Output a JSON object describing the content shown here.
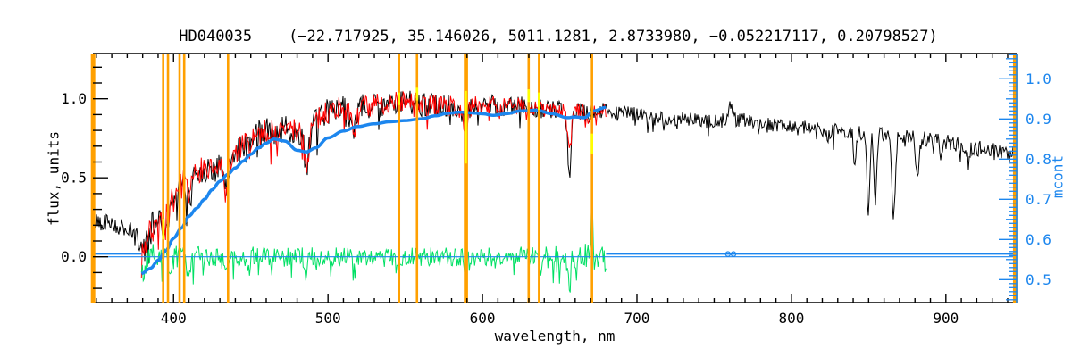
{
  "title": "HD040035    (−22.717925, 35.146026, 5011.1281, 2.8733980, −0.052217117, 0.20798527)",
  "colors": {
    "observed": "#000000",
    "fitted": "#ff0000",
    "residual": "#00e064",
    "continuum": "#1c86ee",
    "marker_lines": "#ffa000",
    "masked_segments": "#ffff00",
    "background": "#ffffff"
  },
  "axes": {
    "x": {
      "label": "wavelength, nm",
      "minor_step": 10,
      "major_ticks": [
        {
          "value": 400,
          "label": "400"
        },
        {
          "value": 500,
          "label": "500"
        },
        {
          "value": 600,
          "label": "600"
        },
        {
          "value": 700,
          "label": "700"
        },
        {
          "value": 800,
          "label": "800"
        },
        {
          "value": 900,
          "label": "900"
        }
      ]
    },
    "y_left": {
      "label": "flux, units",
      "minor_step": 0.1,
      "major_ticks": [
        {
          "value": 0.0,
          "label": "0.0"
        },
        {
          "value": 0.5,
          "label": "0.5"
        },
        {
          "value": 1.0,
          "label": "1.0"
        }
      ]
    },
    "y_right": {
      "label": "mcont",
      "minor_step": 0.01,
      "medium_step": 0.05,
      "major_ticks": [
        {
          "value": 1.0,
          "label": "1.0"
        },
        {
          "value": 0.9,
          "label": "0.9"
        },
        {
          "value": 0.8,
          "label": "0.8"
        },
        {
          "value": 0.7,
          "label": "0.7"
        },
        {
          "value": 0.6,
          "label": "0.6"
        },
        {
          "value": 0.5,
          "label": "0.5"
        }
      ]
    }
  },
  "chart_data": {
    "type": "line",
    "title": "HD040035    (−22.717925, 35.146026, 5011.1281, 2.8733980, −0.052217117, 0.20798527)",
    "xlabel": "wavelength, nm",
    "ylabel_left": "flux, units",
    "ylabel_right": "mcont",
    "xlim": [
      347.8,
      945.8
    ],
    "ylim_flux": [
      -0.29,
      1.286
    ],
    "ylim_mcont": [
      0.443,
      1.063
    ],
    "grid": false,
    "series": [
      {
        "name": "observed_spectrum",
        "color": "#000000",
        "style": "noisy-line",
        "axis": "flux",
        "range": [
          347.8,
          945.8
        ],
        "seed": 42,
        "amp_scale": 1.0,
        "anchors": [
          [
            347.8,
            0.22
          ],
          [
            355,
            0.23
          ],
          [
            362,
            0.21
          ],
          [
            368,
            0.18
          ],
          [
            373,
            0.15
          ],
          [
            377,
            0.1
          ],
          [
            380,
            0.1
          ],
          [
            385,
            0.16
          ],
          [
            390,
            0.28
          ],
          [
            395,
            0.33
          ],
          [
            400,
            0.38
          ],
          [
            405,
            0.45
          ],
          [
            410,
            0.48
          ],
          [
            415,
            0.54
          ],
          [
            420,
            0.58
          ],
          [
            426,
            0.57
          ],
          [
            432,
            0.55
          ],
          [
            438,
            0.62
          ],
          [
            444,
            0.7
          ],
          [
            450,
            0.74
          ],
          [
            456,
            0.78
          ],
          [
            462,
            0.8
          ],
          [
            468,
            0.79
          ],
          [
            474,
            0.81
          ],
          [
            480,
            0.8
          ],
          [
            486,
            0.78
          ],
          [
            492,
            0.85
          ],
          [
            498,
            0.91
          ],
          [
            504,
            0.94
          ],
          [
            510,
            0.95
          ],
          [
            516,
            0.9
          ],
          [
            522,
            0.95
          ],
          [
            528,
            0.97
          ],
          [
            534,
            0.96
          ],
          [
            540,
            0.975
          ],
          [
            546,
            0.985
          ],
          [
            552,
            0.975
          ],
          [
            558,
            0.97
          ],
          [
            564,
            0.96
          ],
          [
            570,
            0.965
          ],
          [
            576,
            0.96
          ],
          [
            582,
            0.95
          ],
          [
            588,
            0.92
          ],
          [
            594,
            0.96
          ],
          [
            600,
            0.965
          ],
          [
            606,
            0.96
          ],
          [
            612,
            0.95
          ],
          [
            618,
            0.95
          ],
          [
            624,
            0.955
          ],
          [
            630,
            0.945
          ],
          [
            636,
            0.94
          ],
          [
            642,
            0.93
          ],
          [
            648,
            0.93
          ],
          [
            654,
            0.92
          ],
          [
            660,
            0.925
          ],
          [
            666,
            0.92
          ],
          [
            672,
            0.92
          ],
          [
            678,
            0.93
          ],
          [
            684,
            0.92
          ],
          [
            690,
            0.915
          ],
          [
            700,
            0.905
          ],
          [
            710,
            0.89
          ],
          [
            720,
            0.875
          ],
          [
            730,
            0.87
          ],
          [
            740,
            0.86
          ],
          [
            750,
            0.855
          ],
          [
            760,
            0.87
          ],
          [
            770,
            0.86
          ],
          [
            780,
            0.845
          ],
          [
            790,
            0.835
          ],
          [
            800,
            0.83
          ],
          [
            810,
            0.82
          ],
          [
            820,
            0.81
          ],
          [
            830,
            0.8
          ],
          [
            840,
            0.785
          ],
          [
            850,
            0.78
          ],
          [
            860,
            0.77
          ],
          [
            870,
            0.76
          ],
          [
            880,
            0.75
          ],
          [
            890,
            0.74
          ],
          [
            900,
            0.725
          ],
          [
            910,
            0.71
          ],
          [
            920,
            0.69
          ],
          [
            930,
            0.67
          ],
          [
            940,
            0.65
          ],
          [
            945.8,
            0.64
          ]
        ],
        "noise_amp": [
          [
            348,
            0.055
          ],
          [
            370,
            0.05
          ],
          [
            380,
            0.075
          ],
          [
            395,
            0.095
          ],
          [
            420,
            0.085
          ],
          [
            460,
            0.08
          ],
          [
            500,
            0.075
          ],
          [
            540,
            0.07
          ],
          [
            580,
            0.065
          ],
          [
            620,
            0.055
          ],
          [
            660,
            0.05
          ],
          [
            680,
            0.045
          ],
          [
            700,
            0.042
          ],
          [
            740,
            0.04
          ],
          [
            780,
            0.038
          ],
          [
            820,
            0.04
          ],
          [
            860,
            0.042
          ],
          [
            900,
            0.045
          ],
          [
            945,
            0.05
          ]
        ],
        "dips": [
          [
            381,
            0.06,
            1.5
          ],
          [
            389,
            0.05,
            1
          ],
          [
            393.3,
            0.13,
            1.0
          ],
          [
            396.8,
            0.15,
            1.1
          ],
          [
            402,
            0.06,
            0.8
          ],
          [
            410.2,
            0.13,
            1.3
          ],
          [
            422,
            0.05,
            1.0
          ],
          [
            434.1,
            0.17,
            1.3
          ],
          [
            449,
            0.05,
            0.8
          ],
          [
            486.1,
            0.22,
            1.3
          ],
          [
            516.8,
            0.1,
            1.8
          ],
          [
            527,
            0.06,
            1.0
          ],
          [
            589.2,
            0.13,
            1.2
          ],
          [
            612,
            0.04,
            0.8
          ],
          [
            629,
            0.04,
            0.8
          ],
          [
            656.3,
            0.42,
            1.1
          ],
          [
            669,
            0.05,
            0.8
          ],
          [
            718,
            0.05,
            1.2
          ],
          [
            823,
            0.05,
            1.2
          ],
          [
            841,
            0.22,
            0.7
          ],
          [
            849.8,
            0.5,
            0.9
          ],
          [
            854.4,
            0.42,
            0.9
          ],
          [
            866.2,
            0.52,
            1.0
          ],
          [
            881.5,
            0.28,
            0.8
          ],
          [
            897,
            0.08,
            0.8
          ],
          [
            915,
            0.06,
            0.8
          ]
        ],
        "bumps": [
          [
            760.8,
            0.11,
            1.2
          ],
          [
            768,
            0.03,
            1.0
          ]
        ]
      },
      {
        "name": "fitted_spectrum",
        "color": "#ff0000",
        "style": "noisy-line",
        "axis": "flux",
        "range": [
          379.2,
          680.2
        ],
        "seed": 7,
        "amp_scale": 0.88,
        "anchors_ref": "observed_spectrum",
        "dips_override": [
          [
            656.3,
            0.28,
            1.1
          ]
        ]
      },
      {
        "name": "residuals",
        "color": "#00e064",
        "style": "noisy-line",
        "axis": "flux",
        "range": [
          379.2,
          680.5
        ],
        "seed": 99,
        "baseline": 0.0,
        "noise_amp": [
          [
            379,
            0.085
          ],
          [
            390,
            0.075
          ],
          [
            420,
            0.06
          ],
          [
            480,
            0.055
          ],
          [
            540,
            0.05
          ],
          [
            600,
            0.055
          ],
          [
            640,
            0.065
          ],
          [
            660,
            0.07
          ],
          [
            680,
            0.09
          ]
        ],
        "spikes": [
          [
            380,
            -0.06,
            1.5
          ],
          [
            397,
            -0.12,
            0.8
          ],
          [
            410,
            -0.1,
            0.8
          ],
          [
            434,
            -0.13,
            0.8
          ],
          [
            486,
            -0.15,
            0.8
          ],
          [
            517,
            -0.1,
            1.0
          ],
          [
            589,
            -0.13,
            0.8
          ],
          [
            637,
            -0.1,
            0.8
          ],
          [
            656.3,
            -0.25,
            0.8
          ],
          [
            661,
            -0.13,
            0.8
          ],
          [
            671,
            0.3,
            0.9
          ],
          [
            672,
            -0.12,
            0.6
          ]
        ]
      },
      {
        "name": "mcont_continuum",
        "color": "#1c86ee",
        "style": "smooth-line",
        "axis": "mcont",
        "width": 3.5,
        "range": [
          379.2,
          680.0
        ],
        "anchors": [
          [
            379.2,
            0.515
          ],
          [
            385,
            0.528
          ],
          [
            390,
            0.548
          ],
          [
            395,
            0.572
          ],
          [
            400,
            0.603
          ],
          [
            405,
            0.628
          ],
          [
            410,
            0.658
          ],
          [
            415,
            0.678
          ],
          [
            420,
            0.7
          ],
          [
            425,
            0.724
          ],
          [
            430,
            0.745
          ],
          [
            435,
            0.762
          ],
          [
            440,
            0.778
          ],
          [
            445,
            0.795
          ],
          [
            450,
            0.812
          ],
          [
            455,
            0.828
          ],
          [
            460,
            0.84
          ],
          [
            465,
            0.85
          ],
          [
            472,
            0.845
          ],
          [
            480,
            0.822
          ],
          [
            486,
            0.818
          ],
          [
            492,
            0.828
          ],
          [
            500,
            0.853
          ],
          [
            510,
            0.87
          ],
          [
            519,
            0.881
          ],
          [
            530,
            0.888
          ],
          [
            540,
            0.893
          ],
          [
            550,
            0.896
          ],
          [
            560,
            0.9
          ],
          [
            570,
            0.908
          ],
          [
            577,
            0.914
          ],
          [
            585,
            0.917
          ],
          [
            594,
            0.915
          ],
          [
            600,
            0.913
          ],
          [
            607,
            0.909
          ],
          [
            615,
            0.913
          ],
          [
            625,
            0.92
          ],
          [
            635,
            0.922
          ],
          [
            645,
            0.913
          ],
          [
            655,
            0.903
          ],
          [
            660,
            0.905
          ],
          [
            666,
            0.903
          ],
          [
            672,
            0.92
          ],
          [
            680,
            0.929
          ]
        ],
        "flat_value": 0.5638,
        "flat_segments": [
          [
            347.8,
            379.2
          ],
          [
            680.0,
            945.8
          ]
        ],
        "telluric_blip": {
          "nm": 760.7,
          "marker_radius": 2.6,
          "marker_offsets": [
            -1.8,
            1.8
          ]
        }
      },
      {
        "name": "zero_line",
        "color": "#1c86ee",
        "style": "hline",
        "axis": "flux",
        "value": 0.0,
        "width": 1.2,
        "range": [
          347.8,
          945.8
        ]
      }
    ],
    "vertical_marker_lines": {
      "color": "#ffa000",
      "wavelengths_nm": [
        393.3,
        396.4,
        403.9,
        406.9,
        435.3,
        546.0,
        557.6,
        588.7,
        589.9,
        629.9,
        636.6,
        670.9
      ],
      "line_width": 2.6,
      "edge_lines_nm": [
        347.9,
        944.9
      ],
      "edge_line_width": 5
    },
    "masked_yellow_segments": [
      {
        "nm": 393.4,
        "flux_from": 0.11,
        "flux_to": 0.24
      },
      {
        "nm": 546.0,
        "flux_from": 0.96,
        "flux_to": 1.04
      },
      {
        "nm": 557.6,
        "flux_from": 0.99,
        "flux_to": 1.07
      },
      {
        "nm": 589.2,
        "flux_from": 0.59,
        "flux_to": 1.05
      },
      {
        "nm": 629.9,
        "flux_from": 0.98,
        "flux_to": 1.06
      },
      {
        "nm": 636.6,
        "flux_from": 0.93,
        "flux_to": 1.04
      },
      {
        "nm": 670.9,
        "flux_from": 0.65,
        "flux_to": 0.78
      }
    ]
  }
}
